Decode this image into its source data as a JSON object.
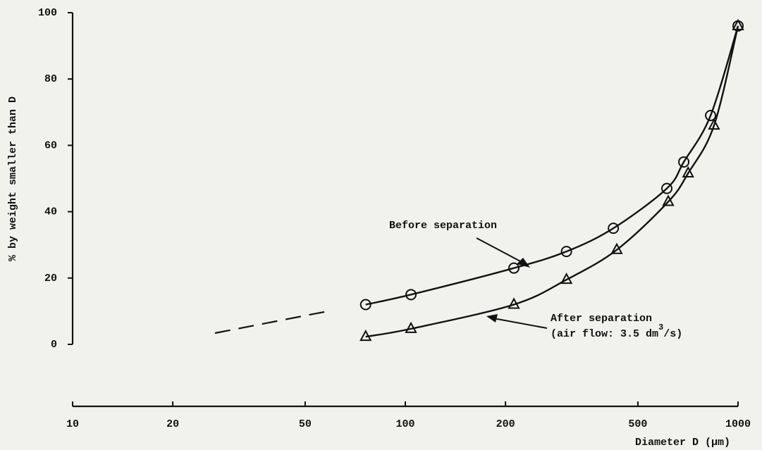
{
  "chart_data": {
    "type": "scatter",
    "xlabel": "Diameter D (μm)",
    "ylabel": "% by weight smaller than D",
    "xscale": "log",
    "xlim": [
      10,
      1000
    ],
    "xticks": [
      10,
      20,
      50,
      100,
      200,
      500,
      1000
    ],
    "ylim": [
      0,
      100
    ],
    "yticks": [
      0,
      20,
      40,
      60,
      80,
      100
    ],
    "series": [
      {
        "marker": "circle",
        "color": "#111111",
        "x": [
          76,
          104,
          212,
          305,
          422,
          611,
          687,
          827,
          1000
        ],
        "values": [
          12,
          15,
          23,
          28,
          35,
          47,
          55,
          69,
          96
        ]
      },
      {
        "marker": "triangle",
        "color": "#111111",
        "x": [
          76,
          104,
          212,
          305,
          432,
          617,
          708,
          847,
          1000
        ],
        "values": [
          2.3,
          4.7,
          12,
          19.5,
          28.5,
          43,
          51.6,
          66,
          96
        ]
      }
    ],
    "annotations": [
      "Before separation",
      "After separation",
      "(air flow: 3.5 dm",
      "3",
      "/s)"
    ]
  }
}
